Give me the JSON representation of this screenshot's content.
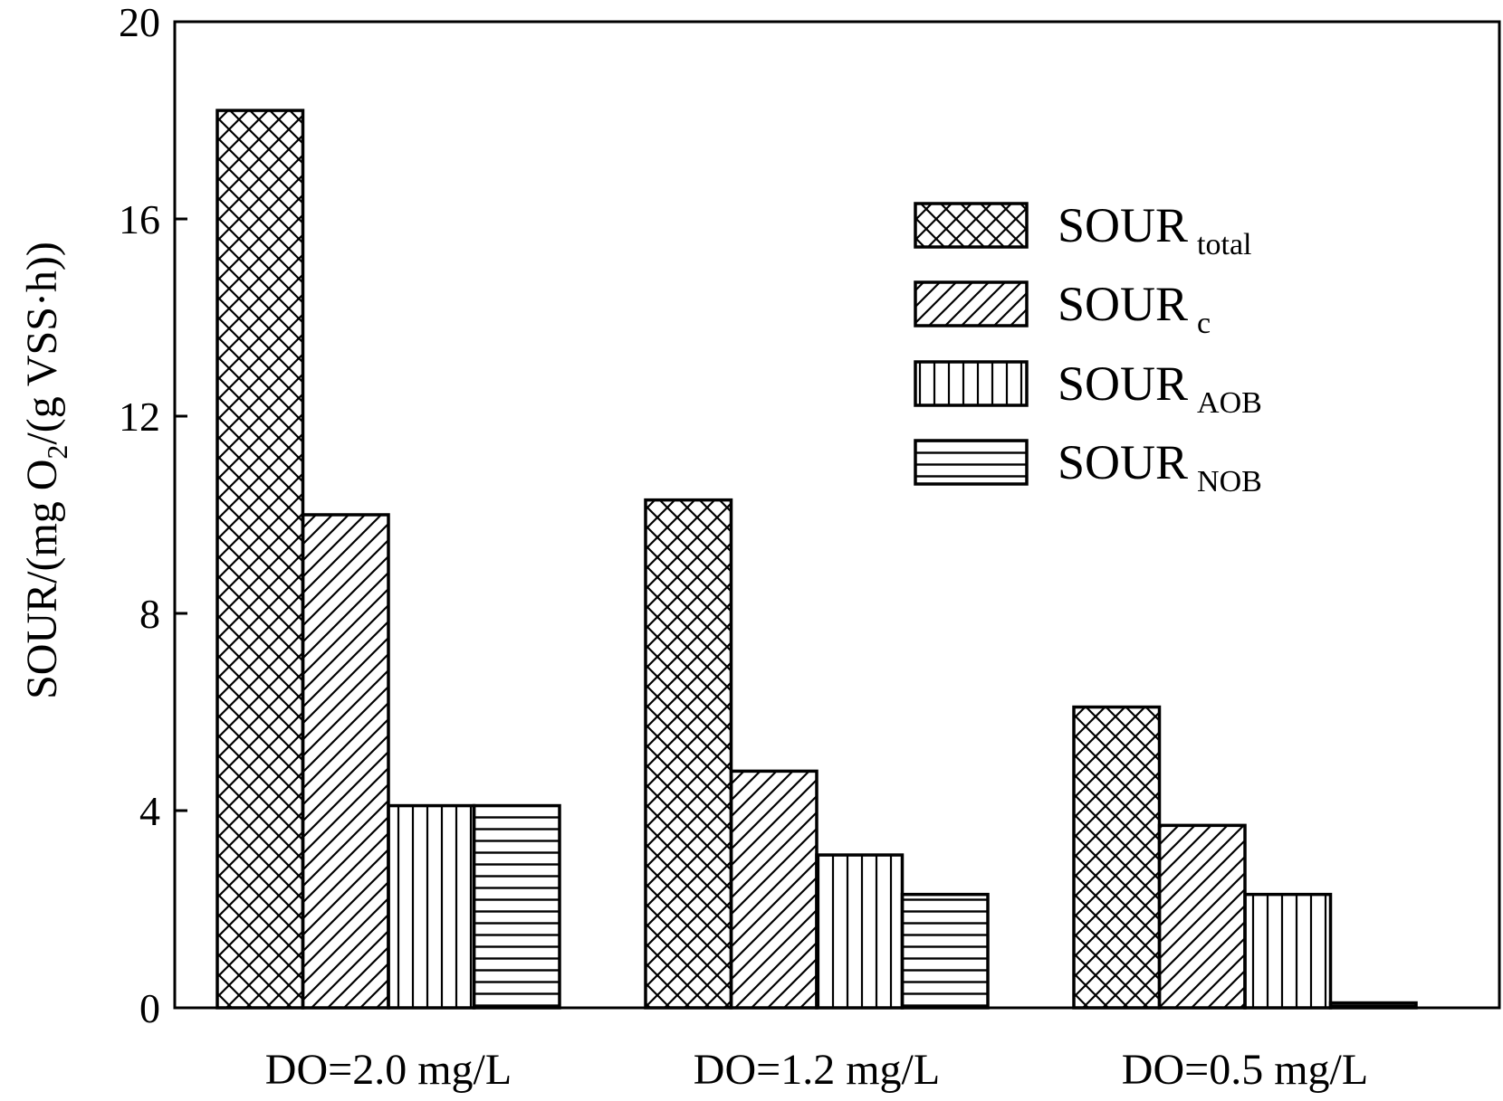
{
  "chart_data": {
    "type": "bar",
    "title": "",
    "xlabel": "",
    "ylabel": {
      "prefix": "SOUR/(mg O",
      "subscript": "2",
      "suffix": "/(g VSS·h))"
    },
    "ylim": [
      0,
      20
    ],
    "yticks": [
      "0",
      "4",
      "8",
      "12",
      "16",
      "20"
    ],
    "legend_position": "top-right",
    "categories": [
      "DO=2.0 mg/L",
      "DO=1.2 mg/L",
      "DO=0.5 mg/L"
    ],
    "series": [
      {
        "name": "SOUR",
        "subscript": "total",
        "pattern": "crosshatch",
        "values": [
          18.2,
          10.3,
          6.1
        ]
      },
      {
        "name": "SOUR",
        "subscript": "c",
        "pattern": "diagonal",
        "values": [
          10.0,
          4.8,
          3.7
        ]
      },
      {
        "name": "SOUR",
        "subscript": "AOB",
        "pattern": "vertical",
        "values": [
          4.1,
          3.1,
          2.3
        ]
      },
      {
        "name": "SOUR",
        "subscript": "NOB",
        "pattern": "horizontal",
        "values": [
          4.1,
          2.3,
          0.1
        ]
      }
    ]
  }
}
